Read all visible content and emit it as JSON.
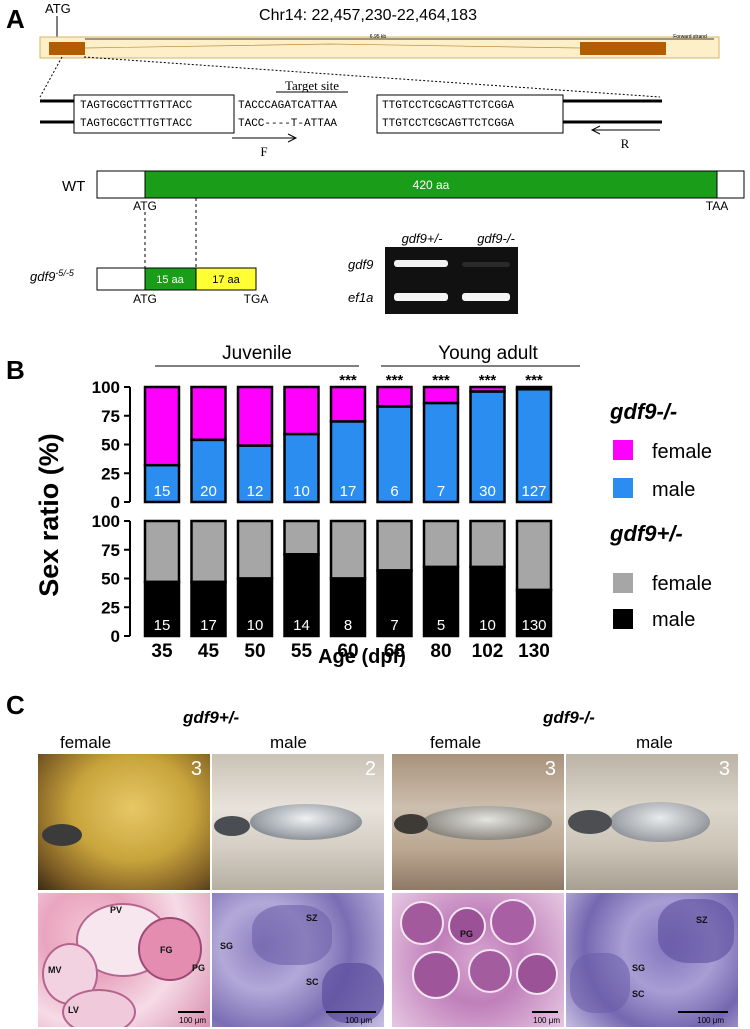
{
  "panel_a": {
    "letter": "A",
    "atg_top": "ATG",
    "chromosome": "Chr14: 22,457,230-22,464,183",
    "ruler_scale": "6.95 kb",
    "ruler_strand": "Forward strand",
    "target_site": "Target site",
    "seq_wt_left": "TAGTGCGCTTTGTTACC",
    "seq_wt_mid": "TACCCAGATCATTAA",
    "seq_wt_right": "TTGTCCTCGCAGTTCTCGGA",
    "seq_mut_left": "TAGTGCGCTTTGTTACC",
    "seq_mut_mid": "TACC----T-ATTAA",
    "seq_mut_right": "TTGTCCTCGCAGTTCTCGGA",
    "primer_f": "F",
    "primer_r": "R",
    "wt_label": "WT",
    "wt_protein": "420 aa",
    "wt_start": "ATG",
    "wt_stop": "TAA",
    "mut_label_base": "gdf9",
    "mut_label_sup": "-5/-5",
    "mut_seg1": "15 aa",
    "mut_seg2": "17 aa",
    "mut_start": "ATG",
    "mut_stop": "TGA",
    "gel_col1": "gdf9+/-",
    "gel_col2": "gdf9-/-",
    "gel_row1": "gdf9",
    "gel_row2": "ef1a",
    "colors": {
      "exon": "#b35c00",
      "protein": "#1a9e1a",
      "frameshift": "#ffff33"
    }
  },
  "panel_b": {
    "letter": "B",
    "chart_data": {
      "type": "bar",
      "stacked": true,
      "ylabel": "Sex ratio (%)",
      "xlabel": "Age (dpf)",
      "categories": [
        "35",
        "45",
        "50",
        "55",
        "60",
        "68",
        "80",
        "102",
        "130"
      ],
      "yticks": [
        "0",
        "25",
        "50",
        "75",
        "100"
      ],
      "group_labels": [
        "Juvenile",
        "Young adult"
      ],
      "top": {
        "genotype": "gdf9-/-",
        "series": [
          {
            "name": "male",
            "color": "#2b8df0",
            "values": [
              32,
              54,
              49,
              59,
              70,
              83,
              86,
              96,
              98
            ]
          },
          {
            "name": "female",
            "color": "#ff00ff",
            "values": [
              68,
              46,
              51,
              41,
              30,
              17,
              14,
              4,
              2
            ]
          }
        ],
        "counts": [
          "15",
          "20",
          "12",
          "10",
          "17",
          "6",
          "7",
          "30",
          "127"
        ],
        "significance": [
          "",
          "",
          "",
          "",
          "***",
          "***",
          "***",
          "***",
          "***"
        ]
      },
      "bottom": {
        "genotype": "gdf9+/-",
        "series": [
          {
            "name": "male",
            "color": "#000000",
            "values": [
              47,
              47,
              50,
              71,
              50,
              57,
              60,
              60,
              40
            ]
          },
          {
            "name": "female",
            "color": "#a6a6a6",
            "values": [
              53,
              53,
              50,
              29,
              50,
              43,
              40,
              40,
              60
            ]
          }
        ],
        "counts": [
          "15",
          "17",
          "10",
          "14",
          "8",
          "7",
          "5",
          "10",
          "130"
        ]
      }
    }
  },
  "panel_c": {
    "letter": "C",
    "geno_het": "gdf9+/-",
    "geno_ko": "gdf9-/-",
    "col_labels": [
      "female",
      "male",
      "female",
      "male"
    ],
    "photo_numbers": [
      "3",
      "2",
      "3",
      "3"
    ],
    "tissue_labels": {
      "het_female": [
        "PV",
        "FG",
        "MV",
        "PG",
        "LV"
      ],
      "het_male": [
        "SZ",
        "SG",
        "SC"
      ],
      "ko_female": [
        "PG"
      ],
      "ko_male": [
        "SZ",
        "SG",
        "SC"
      ]
    },
    "scale_bars": [
      "100 μm",
      "100 μm",
      "100 μm",
      "100 μm"
    ]
  }
}
